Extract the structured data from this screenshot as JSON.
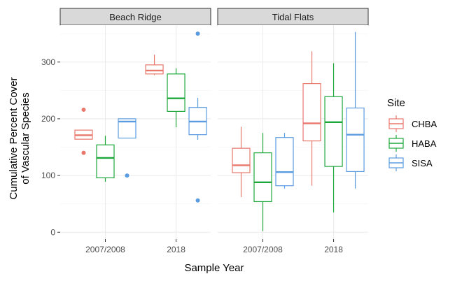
{
  "chart_data": {
    "type": "boxplot",
    "facets": [
      "Beach Ridge",
      "Tidal Flats"
    ],
    "categories": [
      "2007/2008",
      "2018"
    ],
    "xlabel": "Sample Year",
    "ylabel_lines": [
      "Cumulative Percent Cover",
      "of Vascular Species"
    ],
    "ylim": [
      -12,
      365
    ],
    "yticks": [
      0,
      100,
      200,
      300
    ],
    "grid": true,
    "legend": {
      "title": "Site",
      "position": "right"
    },
    "series": [
      {
        "name": "CHBA",
        "color": "#E8786C"
      },
      {
        "name": "HABA",
        "color": "#1EA83B"
      },
      {
        "name": "SISA",
        "color": "#5B9BE0"
      }
    ],
    "boxes": [
      {
        "facet": "Beach Ridge",
        "category": "2007/2008",
        "series": "CHBA",
        "min": 164,
        "q1": 164,
        "median": 171,
        "q3": 180,
        "max": 180,
        "outliers": [
          140,
          216
        ]
      },
      {
        "facet": "Beach Ridge",
        "category": "2007/2008",
        "series": "HABA",
        "min": 89,
        "q1": 96,
        "median": 131,
        "q3": 154,
        "max": 170,
        "outliers": []
      },
      {
        "facet": "Beach Ridge",
        "category": "2007/2008",
        "series": "SISA",
        "min": 166,
        "q1": 166,
        "median": 195,
        "q3": 200,
        "max": 200,
        "outliers": [
          100
        ]
      },
      {
        "facet": "Beach Ridge",
        "category": "2018",
        "series": "CHBA",
        "min": 277,
        "q1": 279,
        "median": 285,
        "q3": 295,
        "max": 313,
        "outliers": []
      },
      {
        "facet": "Beach Ridge",
        "category": "2018",
        "series": "HABA",
        "min": 185,
        "q1": 213,
        "median": 236,
        "q3": 279,
        "max": 289,
        "outliers": []
      },
      {
        "facet": "Beach Ridge",
        "category": "2018",
        "series": "SISA",
        "min": 163,
        "q1": 172,
        "median": 195,
        "q3": 220,
        "max": 237,
        "outliers": [
          56,
          350
        ]
      },
      {
        "facet": "Tidal Flats",
        "category": "2007/2008",
        "series": "CHBA",
        "min": 62,
        "q1": 105,
        "median": 118,
        "q3": 148,
        "max": 186,
        "outliers": []
      },
      {
        "facet": "Tidal Flats",
        "category": "2007/2008",
        "series": "HABA",
        "min": 2,
        "q1": 54,
        "median": 88,
        "q3": 140,
        "max": 175,
        "outliers": []
      },
      {
        "facet": "Tidal Flats",
        "category": "2007/2008",
        "series": "SISA",
        "min": 77,
        "q1": 82,
        "median": 106,
        "q3": 167,
        "max": 175,
        "outliers": []
      },
      {
        "facet": "Tidal Flats",
        "category": "2018",
        "series": "CHBA",
        "min": 82,
        "q1": 161,
        "median": 192,
        "q3": 262,
        "max": 319,
        "outliers": []
      },
      {
        "facet": "Tidal Flats",
        "category": "2018",
        "series": "HABA",
        "min": 35,
        "q1": 116,
        "median": 194,
        "q3": 239,
        "max": 298,
        "outliers": []
      },
      {
        "facet": "Tidal Flats",
        "category": "2018",
        "series": "SISA",
        "min": 77,
        "q1": 107,
        "median": 172,
        "q3": 219,
        "max": 353,
        "outliers": []
      }
    ]
  }
}
